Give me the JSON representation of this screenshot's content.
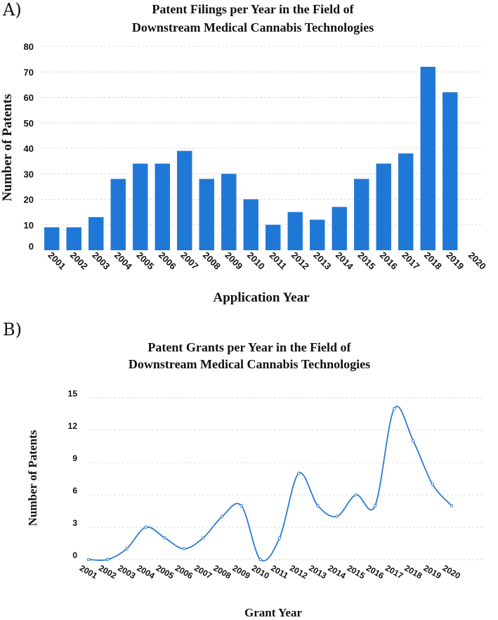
{
  "chart_data": [
    {
      "type": "bar",
      "panel_label": "A)",
      "title": [
        "Patent Filings per Year in the Field of",
        "Downstream Medical Cannabis Technologies"
      ],
      "xlabel": "Application Year",
      "ylabel": "Number of Patents",
      "ylim": [
        0,
        80
      ],
      "yticks": [
        0,
        10,
        20,
        30,
        40,
        50,
        60,
        70,
        80
      ],
      "grid": true,
      "bar_color": "#1f78d6",
      "categories": [
        "2001",
        "2002",
        "2003",
        "2004",
        "2005",
        "2006",
        "2007",
        "2008",
        "2009",
        "2010",
        "2011",
        "2012",
        "2013",
        "2014",
        "2015",
        "2016",
        "2017",
        "2018",
        "2019",
        "2020"
      ],
      "values": [
        9,
        9,
        13,
        28,
        34,
        34,
        39,
        28,
        30,
        20,
        10,
        15,
        12,
        17,
        28,
        34,
        38,
        72,
        62,
        0
      ]
    },
    {
      "type": "line",
      "panel_label": "B)",
      "title": [
        "Patent Grants per Year in the Field of",
        "Downstream Medical Cannabis Technologies"
      ],
      "xlabel": "Grant Year",
      "ylabel": "Number of Patents",
      "ylim": [
        0,
        15
      ],
      "yticks": [
        0,
        3,
        6,
        9,
        12,
        15
      ],
      "grid": true,
      "line_color": "#2c7bd0",
      "categories": [
        "2001",
        "2002",
        "2003",
        "2004",
        "2005",
        "2006",
        "2007",
        "2008",
        "2009",
        "2010",
        "2011",
        "2012",
        "2013",
        "2014",
        "2015",
        "2016",
        "2017",
        "2018",
        "2019",
        "2020"
      ],
      "values": [
        0,
        0,
        1,
        3,
        2,
        1,
        2,
        4,
        5,
        0,
        2,
        8,
        5,
        4,
        6,
        5,
        14,
        11,
        7,
        5
      ]
    }
  ]
}
